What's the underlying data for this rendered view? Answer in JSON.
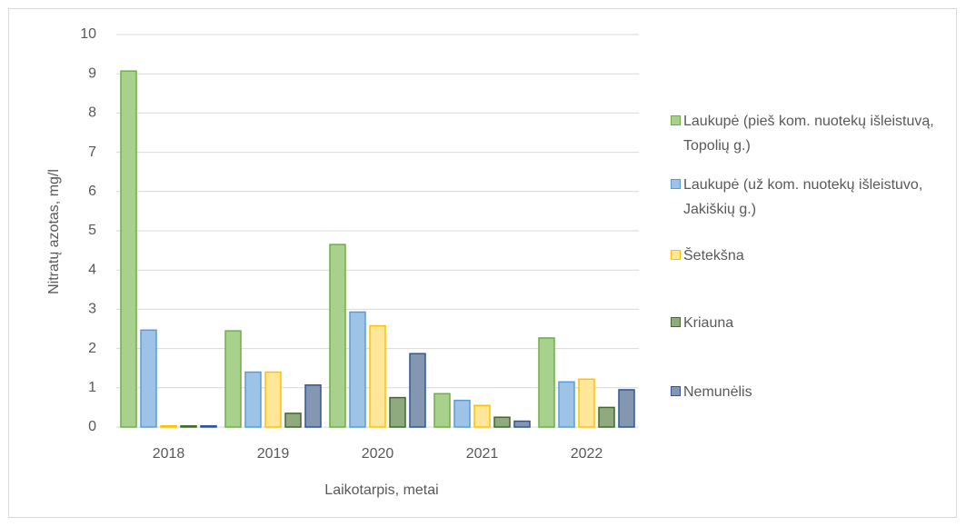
{
  "chart_data": {
    "type": "bar",
    "xlabel": "Laikotarpis, metai",
    "ylabel": "Nitratų azotas, mg/l",
    "categories": [
      "2018",
      "2019",
      "2020",
      "2021",
      "2022"
    ],
    "series": [
      {
        "name": "Laukupė (pieš kom. nuotekų išleistuvą, Topolių g.)",
        "color": "#a9d18e",
        "edgecolor": "#70ad47",
        "values": [
          9.07,
          2.45,
          4.65,
          0.85,
          2.27
        ]
      },
      {
        "name": "Laukupė (už kom. nuotekų išleistuvo, Jakiškių g.)",
        "color": "#9dc3e6",
        "edgecolor": "#5b9bd5",
        "values": [
          2.47,
          1.4,
          2.93,
          0.68,
          1.15
        ]
      },
      {
        "name": "Šetekšna",
        "color": "#ffe699",
        "edgecolor": "#ffc000",
        "values": [
          0.03,
          1.4,
          2.58,
          0.55,
          1.22
        ]
      },
      {
        "name": "Kriauna",
        "color": "#8faa7f",
        "edgecolor": "#43682b",
        "values": [
          0.03,
          0.35,
          0.75,
          0.25,
          0.5
        ]
      },
      {
        "name": "Nemunėlis",
        "color": "#8497b0",
        "edgecolor": "#2f5597",
        "values": [
          0.03,
          1.07,
          1.87,
          0.15,
          0.95
        ]
      }
    ],
    "ylim": [
      0,
      10
    ],
    "yticks": [
      0,
      1,
      2,
      3,
      4,
      5,
      6,
      7,
      8,
      9,
      10
    ],
    "grid": true,
    "legend": "right"
  }
}
